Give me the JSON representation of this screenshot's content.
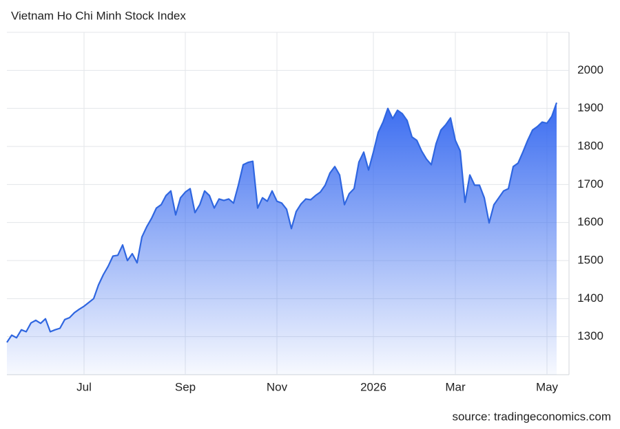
{
  "chart_data": {
    "type": "area",
    "title": "Vietnam Ho Chi Minh Stock Index",
    "source": "source: tradingeconomics.com",
    "categories": [
      null,
      null,
      null,
      null,
      null,
      null,
      null,
      null,
      null,
      null,
      null,
      null,
      null,
      null,
      null,
      null,
      "Jul",
      null,
      null,
      null,
      null,
      null,
      null,
      null,
      null,
      null,
      null,
      null,
      null,
      null,
      null,
      null,
      null,
      null,
      null,
      null,
      null,
      "Sep",
      null,
      null,
      null,
      null,
      null,
      null,
      null,
      null,
      null,
      null,
      null,
      null,
      null,
      null,
      null,
      null,
      null,
      null,
      "Nov",
      null,
      null,
      null,
      null,
      null,
      null,
      null,
      null,
      null,
      null,
      null,
      null,
      null,
      null,
      null,
      null,
      null,
      null,
      null,
      "2026",
      null,
      null,
      null,
      null,
      null,
      null,
      null,
      null,
      null,
      null,
      null,
      null,
      null,
      null,
      null,
      null,
      "Mar",
      null,
      null,
      null,
      null,
      null,
      null,
      null,
      null,
      null,
      null,
      null,
      null,
      null,
      null,
      null,
      null,
      null,
      null,
      "May",
      null,
      null
    ],
    "series": [
      {
        "name": "Vietnam Ho Chi Minh Stock Index",
        "color": "#2f66e0",
        "values": [
          1285,
          1304,
          1297,
          1318,
          1313,
          1336,
          1343,
          1335,
          1347,
          1313,
          1318,
          1322,
          1345,
          1350,
          1363,
          1372,
          1380,
          1390,
          1400,
          1436,
          1463,
          1485,
          1512,
          1514,
          1541,
          1500,
          1518,
          1494,
          1562,
          1589,
          1611,
          1638,
          1647,
          1671,
          1683,
          1620,
          1665,
          1680,
          1689,
          1626,
          1647,
          1683,
          1671,
          1638,
          1662,
          1658,
          1662,
          1651,
          1698,
          1752,
          1758,
          1761,
          1638,
          1665,
          1656,
          1683,
          1656,
          1651,
          1635,
          1584,
          1629,
          1649,
          1662,
          1660,
          1671,
          1680,
          1698,
          1730,
          1747,
          1725,
          1647,
          1676,
          1689,
          1759,
          1785,
          1738,
          1785,
          1837,
          1864,
          1900,
          1873,
          1895,
          1886,
          1868,
          1825,
          1816,
          1788,
          1767,
          1752,
          1807,
          1843,
          1857,
          1875,
          1816,
          1788,
          1653,
          1725,
          1698,
          1698,
          1665,
          1599,
          1647,
          1665,
          1683,
          1689,
          1747,
          1756,
          1785,
          1816,
          1843,
          1852,
          1864,
          1861,
          1879,
          1915
        ]
      }
    ],
    "ylim": [
      1200,
      2100
    ],
    "yticks": [
      1300,
      1400,
      1500,
      1600,
      1700,
      1800,
      1900,
      2000
    ],
    "grid": true
  }
}
